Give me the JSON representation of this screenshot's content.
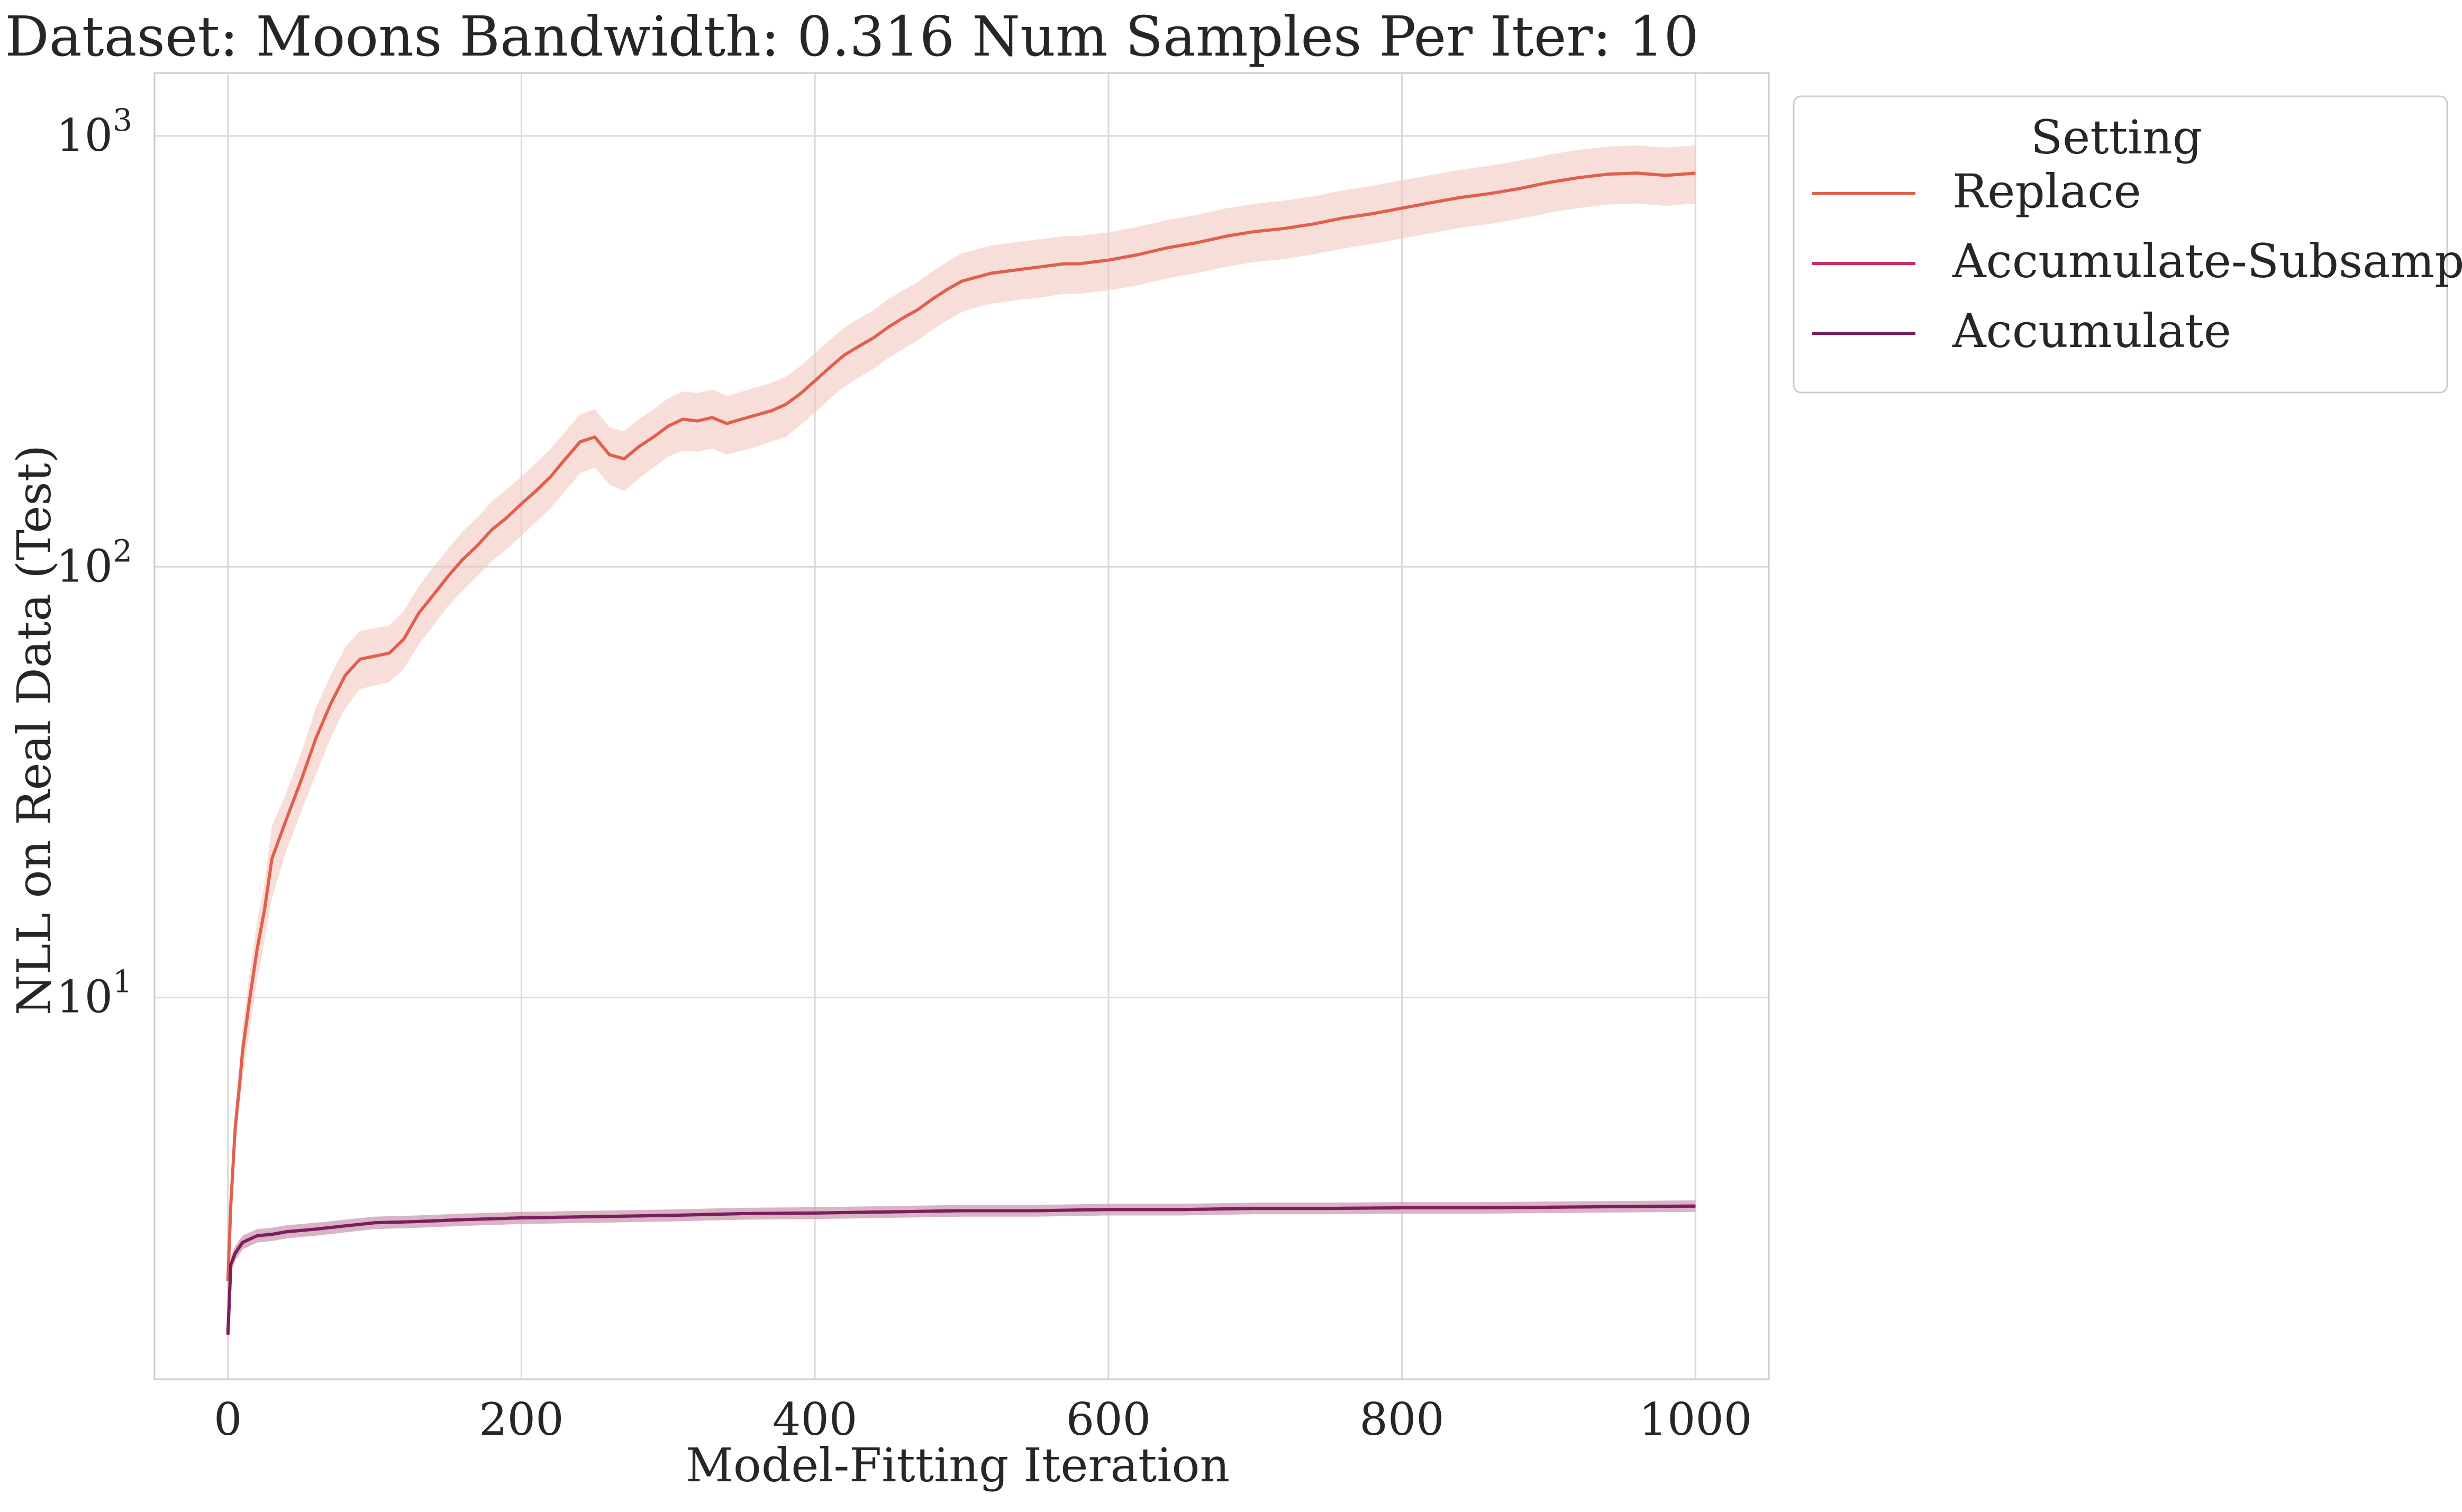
{
  "chart_data": {
    "type": "line",
    "title": "Dataset: Moons Bandwidth: 0.316 Num Samples Per Iter: 10",
    "xlabel": "Model-Fitting Iteration",
    "ylabel": "NLL on Real Data (Test)",
    "xlim": [
      -50,
      1050
    ],
    "ylim": [
      1.3,
      1400
    ],
    "yscale": "log",
    "grid": true,
    "x_ticks": [
      0,
      200,
      400,
      600,
      800,
      1000
    ],
    "x_tick_labels": [
      "0",
      "200",
      "400",
      "600",
      "800",
      "1000"
    ],
    "y_ticks": [
      10,
      100,
      1000
    ],
    "y_tick_labels": [
      {
        "base": "10",
        "exp": "1"
      },
      {
        "base": "10",
        "exp": "2"
      },
      {
        "base": "10",
        "exp": "3"
      }
    ],
    "legend": {
      "title": "Setting",
      "position": "outside-top-right",
      "entries": [
        "Replace",
        "Accumulate-Subsample",
        "Accumulate"
      ]
    },
    "series": [
      {
        "name": "Replace",
        "color": "#e0604f",
        "band_color": "#f3c2ba",
        "x": [
          0,
          2,
          5,
          8,
          10,
          15,
          20,
          25,
          30,
          40,
          50,
          60,
          70,
          80,
          90,
          100,
          110,
          120,
          130,
          140,
          150,
          160,
          170,
          180,
          190,
          200,
          210,
          220,
          230,
          240,
          250,
          260,
          270,
          280,
          290,
          300,
          310,
          320,
          330,
          340,
          350,
          360,
          370,
          380,
          390,
          400,
          410,
          420,
          430,
          440,
          450,
          460,
          470,
          480,
          490,
          500,
          510,
          520,
          530,
          540,
          550,
          560,
          570,
          580,
          590,
          600,
          620,
          640,
          660,
          680,
          700,
          720,
          740,
          760,
          780,
          800,
          820,
          840,
          860,
          880,
          900,
          920,
          940,
          960,
          980,
          1000
        ],
        "y": [
          2.2,
          3.3,
          5.0,
          6.3,
          7.5,
          10,
          13,
          16,
          21,
          26,
          32,
          40,
          48,
          56,
          61,
          62,
          63,
          68,
          78,
          86,
          95,
          104,
          112,
          122,
          130,
          140,
          150,
          162,
          178,
          195,
          200,
          182,
          178,
          190,
          200,
          212,
          220,
          218,
          222,
          215,
          220,
          225,
          230,
          238,
          252,
          270,
          290,
          310,
          325,
          340,
          360,
          378,
          395,
          418,
          440,
          460,
          470,
          480,
          485,
          490,
          495,
          500,
          505,
          505,
          510,
          515,
          530,
          550,
          565,
          585,
          600,
          610,
          625,
          645,
          660,
          680,
          700,
          720,
          735,
          755,
          780,
          800,
          815,
          820,
          810,
          820
        ],
        "y_low": [
          2.0,
          3.0,
          4.5,
          5.6,
          6.5,
          8.5,
          11,
          13.5,
          17,
          22,
          27,
          33,
          40,
          47,
          52,
          53,
          54,
          58,
          66,
          73,
          81,
          88,
          95,
          103,
          110,
          118,
          127,
          137,
          150,
          165,
          170,
          155,
          150,
          160,
          170,
          180,
          186,
          185,
          188,
          182,
          186,
          190,
          195,
          200,
          213,
          228,
          245,
          262,
          275,
          288,
          305,
          320,
          335,
          355,
          373,
          390,
          400,
          408,
          412,
          417,
          420,
          425,
          430,
          430,
          434,
          438,
          450,
          467,
          480,
          497,
          510,
          518,
          531,
          548,
          561,
          578,
          595,
          612,
          625,
          642,
          663,
          680,
          693,
          697,
          688,
          697
        ],
        "y_high": [
          2.4,
          3.6,
          5.5,
          7.0,
          8.5,
          11.5,
          15,
          18.5,
          25,
          30,
          37,
          47,
          56,
          65,
          71,
          72,
          73,
          79,
          90,
          100,
          110,
          121,
          130,
          142,
          151,
          162,
          174,
          188,
          206,
          226,
          232,
          211,
          206,
          220,
          232,
          246,
          255,
          253,
          258,
          249,
          255,
          261,
          267,
          276,
          292,
          313,
          336,
          359,
          377,
          394,
          418,
          438,
          458,
          485,
          510,
          534,
          545,
          557,
          563,
          568,
          574,
          580,
          586,
          586,
          592,
          597,
          615,
          638,
          655,
          679,
          696,
          708,
          725,
          748,
          766,
          789,
          812,
          835,
          853,
          876,
          905,
          928,
          945,
          951,
          940,
          951
        ]
      },
      {
        "name": "Accumulate-Subsample",
        "color": "#c8305a",
        "band_color": "#e8a9bd",
        "x": [
          0,
          2,
          5,
          10,
          15,
          20,
          30,
          40,
          60,
          80,
          100,
          130,
          160,
          200,
          250,
          300,
          350,
          400,
          450,
          500,
          550,
          600,
          650,
          700,
          750,
          800,
          850,
          900,
          950,
          1000
        ],
        "y": [
          1.65,
          2.4,
          2.55,
          2.7,
          2.75,
          2.8,
          2.82,
          2.86,
          2.9,
          2.95,
          3.0,
          3.02,
          3.05,
          3.08,
          3.1,
          3.12,
          3.15,
          3.16,
          3.18,
          3.2,
          3.2,
          3.22,
          3.22,
          3.24,
          3.24,
          3.25,
          3.25,
          3.26,
          3.27,
          3.28
        ],
        "y_low": [
          1.6,
          2.3,
          2.45,
          2.6,
          2.65,
          2.7,
          2.72,
          2.76,
          2.8,
          2.85,
          2.9,
          2.92,
          2.95,
          2.98,
          3.0,
          3.02,
          3.05,
          3.06,
          3.08,
          3.1,
          3.1,
          3.12,
          3.12,
          3.14,
          3.14,
          3.15,
          3.15,
          3.16,
          3.17,
          3.18
        ],
        "y_high": [
          1.7,
          2.5,
          2.65,
          2.8,
          2.85,
          2.9,
          2.92,
          2.96,
          3.0,
          3.05,
          3.1,
          3.12,
          3.15,
          3.18,
          3.2,
          3.22,
          3.25,
          3.26,
          3.28,
          3.3,
          3.3,
          3.32,
          3.32,
          3.34,
          3.34,
          3.35,
          3.35,
          3.36,
          3.37,
          3.38
        ]
      },
      {
        "name": "Accumulate",
        "color": "#7a1f5c",
        "band_color": "#c59ab5",
        "x": [
          0,
          2,
          5,
          10,
          15,
          20,
          30,
          40,
          60,
          80,
          100,
          130,
          160,
          200,
          250,
          300,
          350,
          400,
          450,
          500,
          550,
          600,
          650,
          700,
          750,
          800,
          850,
          900,
          950,
          1000
        ],
        "y": [
          1.65,
          2.4,
          2.55,
          2.7,
          2.75,
          2.8,
          2.82,
          2.86,
          2.9,
          2.95,
          3.0,
          3.02,
          3.05,
          3.08,
          3.1,
          3.12,
          3.15,
          3.16,
          3.18,
          3.2,
          3.2,
          3.22,
          3.22,
          3.24,
          3.24,
          3.25,
          3.25,
          3.26,
          3.27,
          3.28
        ],
        "y_low": [
          1.6,
          2.3,
          2.45,
          2.6,
          2.65,
          2.7,
          2.72,
          2.76,
          2.8,
          2.85,
          2.9,
          2.92,
          2.95,
          2.98,
          3.0,
          3.02,
          3.05,
          3.06,
          3.08,
          3.1,
          3.1,
          3.12,
          3.12,
          3.14,
          3.14,
          3.15,
          3.15,
          3.16,
          3.17,
          3.18
        ],
        "y_high": [
          1.7,
          2.5,
          2.65,
          2.8,
          2.85,
          2.9,
          2.92,
          2.96,
          3.0,
          3.05,
          3.1,
          3.12,
          3.15,
          3.18,
          3.2,
          3.22,
          3.25,
          3.26,
          3.28,
          3.3,
          3.3,
          3.32,
          3.32,
          3.34,
          3.34,
          3.35,
          3.35,
          3.36,
          3.37,
          3.38
        ]
      }
    ]
  }
}
